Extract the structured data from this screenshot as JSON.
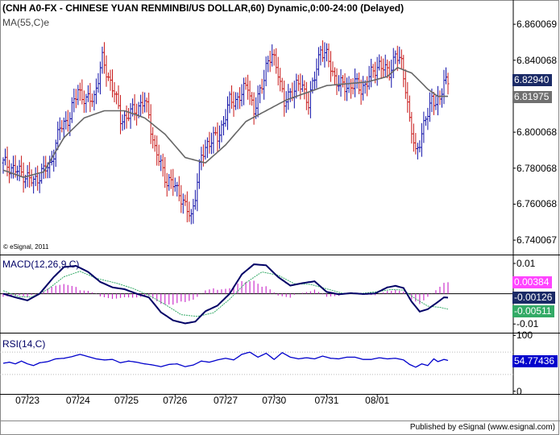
{
  "price_panel": {
    "title": "(CNH A0-FX - CHINESE YUAN RENMINBI/US DOLLAR,60) Dynamic,0:00-24:00 (Delayed)",
    "ma_label": "MA(55,C)e",
    "copyright": "© eSignal, 2011"
  },
  "macd_panel": {
    "title": "MACD(12,26,9,C)"
  },
  "rsi_panel": {
    "title": "RSI(14,C)"
  },
  "footer": "Published by eSignal (www.esignal.com)",
  "colors": {
    "up_bar": "#1010a8",
    "down_bar": "#c81818",
    "ma_line": "#666666",
    "macd_line": "#000066",
    "signal_line": "#33aa66",
    "histogram": "#cc33cc",
    "rsi_line": "#0000cc",
    "price_tag": "#1a2a66",
    "ma_tag": "#707070",
    "hist_tag": "#ff44ff",
    "macd_tag": "#1a2a66",
    "signal_tag": "#33aa66",
    "rsi_tag": "#0000cc"
  },
  "chart_data": [
    {
      "type": "ohlc",
      "name": "price",
      "yticks": [
        "6.860069",
        "6.840068",
        "6.800068",
        "6.780068",
        "6.760068",
        "6.740067"
      ],
      "ytick_values": [
        6.860069,
        6.840068,
        6.800068,
        6.780068,
        6.760068,
        6.740067
      ],
      "ylim": [
        6.7325,
        6.8655
      ],
      "last_price_label": "6.82940",
      "ma_value_label": "6.81975",
      "xlabels": [
        "07/23",
        "07/24",
        "07/25",
        "07/26",
        "07/27",
        "07/30",
        "07/31",
        "08/01"
      ],
      "close_path": [
        [
          0,
          6.783
        ],
        [
          6,
          6.779
        ],
        [
          11,
          6.776
        ],
        [
          15,
          6.772
        ],
        [
          19,
          6.778
        ],
        [
          23,
          6.781
        ],
        [
          28,
          6.802
        ],
        [
          33,
          6.809
        ],
        [
          37,
          6.824
        ],
        [
          41,
          6.817
        ],
        [
          45,
          6.82
        ],
        [
          49,
          6.84
        ],
        [
          52,
          6.831
        ],
        [
          55,
          6.822
        ],
        [
          58,
          6.808
        ],
        [
          61,
          6.808
        ],
        [
          64,
          6.812
        ],
        [
          67,
          6.814
        ],
        [
          70,
          6.817
        ],
        [
          72,
          6.81
        ],
        [
          75,
          6.79
        ],
        [
          78,
          6.782
        ],
        [
          81,
          6.773
        ],
        [
          84,
          6.771
        ],
        [
          87,
          6.767
        ],
        [
          90,
          6.758
        ],
        [
          93,
          6.753
        ],
        [
          95,
          6.766
        ],
        [
          98,
          6.786
        ],
        [
          101,
          6.794
        ],
        [
          103,
          6.796
        ],
        [
          106,
          6.797
        ],
        [
          109,
          6.806
        ],
        [
          112,
          6.817
        ],
        [
          115,
          6.818
        ],
        [
          118,
          6.821
        ],
        [
          121,
          6.827
        ],
        [
          124,
          6.811
        ],
        [
          127,
          6.822
        ],
        [
          130,
          6.837
        ],
        [
          133,
          6.842
        ],
        [
          136,
          6.835
        ],
        [
          139,
          6.815
        ],
        [
          142,
          6.822
        ],
        [
          145,
          6.826
        ],
        [
          148,
          6.825
        ],
        [
          151,
          6.817
        ],
        [
          154,
          6.83
        ],
        [
          157,
          6.847
        ],
        [
          160,
          6.842
        ],
        [
          163,
          6.833
        ],
        [
          166,
          6.827
        ],
        [
          169,
          6.825
        ],
        [
          171,
          6.826
        ],
        [
          174,
          6.827
        ],
        [
          177,
          6.824
        ],
        [
          180,
          6.828
        ],
        [
          183,
          6.834
        ],
        [
          186,
          6.838
        ],
        [
          189,
          6.834
        ],
        [
          191,
          6.834
        ],
        [
          194,
          6.843
        ],
        [
          197,
          6.838
        ],
        [
          199,
          6.826
        ],
        [
          201,
          6.806
        ],
        [
          204,
          6.788
        ],
        [
          207,
          6.8
        ],
        [
          210,
          6.81
        ],
        [
          212,
          6.819
        ],
        [
          214,
          6.818
        ],
        [
          216,
          6.816
        ],
        [
          218,
          6.829
        ],
        [
          220,
          6.829
        ]
      ],
      "ma_path": [
        [
          0,
          6.779
        ],
        [
          10,
          6.775
        ],
        [
          20,
          6.778
        ],
        [
          30,
          6.797
        ],
        [
          40,
          6.808
        ],
        [
          50,
          6.812
        ],
        [
          60,
          6.812
        ],
        [
          70,
          6.808
        ],
        [
          80,
          6.799
        ],
        [
          90,
          6.786
        ],
        [
          100,
          6.783
        ],
        [
          110,
          6.793
        ],
        [
          120,
          6.806
        ],
        [
          130,
          6.812
        ],
        [
          140,
          6.818
        ],
        [
          150,
          6.822
        ],
        [
          160,
          6.826
        ],
        [
          170,
          6.827
        ],
        [
          180,
          6.828
        ],
        [
          190,
          6.831
        ],
        [
          195,
          6.836
        ],
        [
          202,
          6.833
        ],
        [
          210,
          6.824
        ],
        [
          215,
          6.82
        ],
        [
          220,
          6.82
        ]
      ]
    },
    {
      "type": "line",
      "name": "MACD",
      "yticks": [
        "0.01",
        "-0.01"
      ],
      "ytick_values": [
        0.01,
        -0.01
      ],
      "ylim": [
        -0.0126,
        0.0124
      ],
      "series": [
        {
          "name": "MACD",
          "label": "-0.00126",
          "path": [
            [
              0,
              0.0
            ],
            [
              6,
              -0.0012
            ],
            [
              12,
              -0.0022
            ],
            [
              18,
              0.0
            ],
            [
              25,
              0.0055
            ],
            [
              30,
              0.0088
            ],
            [
              36,
              0.0092
            ],
            [
              42,
              0.0072
            ],
            [
              48,
              0.0039
            ],
            [
              54,
              0.0021
            ],
            [
              60,
              0.0015
            ],
            [
              66,
              0.0
            ],
            [
              72,
              -0.0012
            ],
            [
              78,
              -0.0061
            ],
            [
              84,
              -0.0088
            ],
            [
              90,
              -0.0098
            ],
            [
              95,
              -0.0092
            ],
            [
              100,
              -0.0058
            ],
            [
              106,
              -0.0039
            ],
            [
              112,
              0.0
            ],
            [
              118,
              0.0064
            ],
            [
              124,
              0.0097
            ],
            [
              130,
              0.0094
            ],
            [
              136,
              0.0055
            ],
            [
              142,
              0.0027
            ],
            [
              148,
              0.0035
            ],
            [
              154,
              0.0041
            ],
            [
              160,
              0.0006
            ],
            [
              166,
              -0.0002
            ],
            [
              172,
              0.0002
            ],
            [
              178,
              -0.0001
            ],
            [
              184,
              0.0001
            ],
            [
              190,
              0.0021
            ],
            [
              194,
              0.0026
            ],
            [
              198,
              0.0019
            ],
            [
              202,
              -0.0026
            ],
            [
              206,
              -0.0059
            ],
            [
              210,
              -0.0051
            ],
            [
              214,
              -0.0032
            ],
            [
              218,
              -0.0012
            ],
            [
              220,
              -0.0013
            ]
          ]
        },
        {
          "name": "Signal",
          "label": "-0.00511",
          "path": [
            [
              0,
              0.001
            ],
            [
              8,
              -0.001
            ],
            [
              14,
              -0.0011
            ],
            [
              22,
              0.0014
            ],
            [
              30,
              0.0056
            ],
            [
              38,
              0.0074
            ],
            [
              46,
              0.0051
            ],
            [
              56,
              0.0035
            ],
            [
              64,
              0.0018
            ],
            [
              72,
              -0.0005
            ],
            [
              80,
              -0.0035
            ],
            [
              88,
              -0.0069
            ],
            [
              96,
              -0.0075
            ],
            [
              104,
              -0.0063
            ],
            [
              112,
              -0.0018
            ],
            [
              120,
              0.0036
            ],
            [
              128,
              0.0072
            ],
            [
              136,
              0.0061
            ],
            [
              144,
              0.0033
            ],
            [
              152,
              0.0031
            ],
            [
              160,
              0.0016
            ],
            [
              168,
              0.0001
            ],
            [
              176,
              0.0
            ],
            [
              184,
              0.0006
            ],
            [
              192,
              0.0014
            ],
            [
              198,
              0.0012
            ],
            [
              204,
              -0.0017
            ],
            [
              210,
              -0.0041
            ],
            [
              216,
              -0.0045
            ],
            [
              220,
              -0.0051
            ]
          ]
        }
      ],
      "histogram_label": "0.00384",
      "histogram_last": 0.00384
    },
    {
      "type": "line",
      "name": "RSI",
      "yticks": [
        "100",
        "0"
      ],
      "ytick_values": [
        100,
        0
      ],
      "ylim": [
        -2,
        102
      ],
      "series": [
        {
          "name": "RSI",
          "label": "54.77436",
          "path": [
            [
              0,
              50
            ],
            [
              3,
              52
            ],
            [
              6,
              49
            ],
            [
              9,
              54
            ],
            [
              12,
              49
            ],
            [
              15,
              46
            ],
            [
              18,
              51
            ],
            [
              22,
              53
            ],
            [
              26,
              58
            ],
            [
              30,
              59
            ],
            [
              34,
              62
            ],
            [
              38,
              66
            ],
            [
              42,
              62
            ],
            [
              46,
              58
            ],
            [
              50,
              56
            ],
            [
              54,
              57
            ],
            [
              58,
              51
            ],
            [
              62,
              54
            ],
            [
              66,
              52
            ],
            [
              70,
              49
            ],
            [
              74,
              47
            ],
            [
              78,
              44
            ],
            [
              82,
              48
            ],
            [
              86,
              49
            ],
            [
              90,
              44
            ],
            [
              94,
              47
            ],
            [
              98,
              54
            ],
            [
              102,
              52
            ],
            [
              106,
              56
            ],
            [
              110,
              59
            ],
            [
              114,
              56
            ],
            [
              118,
              66
            ],
            [
              122,
              70
            ],
            [
              126,
              61
            ],
            [
              130,
              68
            ],
            [
              134,
              57
            ],
            [
              138,
              69
            ],
            [
              142,
              61
            ],
            [
              146,
              58
            ],
            [
              150,
              60
            ],
            [
              154,
              58
            ],
            [
              158,
              63
            ],
            [
              162,
              59
            ],
            [
              166,
              58
            ],
            [
              170,
              61
            ],
            [
              174,
              61
            ],
            [
              178,
              57
            ],
            [
              182,
              57
            ],
            [
              186,
              60
            ],
            [
              190,
              58
            ],
            [
              194,
              59
            ],
            [
              198,
              56
            ],
            [
              201,
              48
            ],
            [
              204,
              43
            ],
            [
              207,
              49
            ],
            [
              210,
              46
            ],
            [
              213,
              58
            ],
            [
              215,
              53
            ],
            [
              218,
              57
            ],
            [
              220,
              55
            ]
          ]
        }
      ]
    }
  ]
}
